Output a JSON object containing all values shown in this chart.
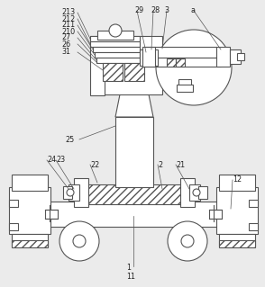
{
  "bg_color": "#ebebeb",
  "line_color": "#555555",
  "figsize": [
    2.94,
    3.19
  ],
  "dpi": 100,
  "label_fs": 5.8,
  "label_color": "#222222"
}
